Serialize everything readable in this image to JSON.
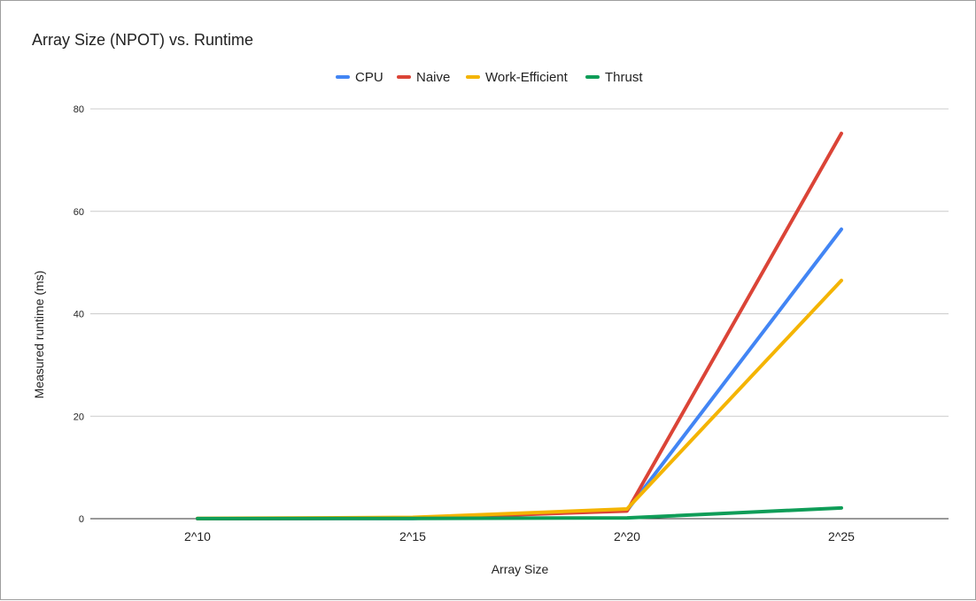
{
  "chart_data": {
    "type": "line",
    "title": "Array Size (NPOT) vs. Runtime",
    "xlabel": "Array Size",
    "ylabel": "Measured runtime (ms)",
    "categories": [
      "2^10",
      "2^15",
      "2^20",
      "2^25"
    ],
    "ylim": [
      0,
      80
    ],
    "yticks": [
      0,
      20,
      40,
      60,
      80
    ],
    "grid": true,
    "legend_position": "top",
    "series": [
      {
        "name": "CPU",
        "color": "#4285f4",
        "values": [
          0.002,
          0.05,
          1.6,
          56.5
        ]
      },
      {
        "name": "Naive",
        "color": "#db4437",
        "values": [
          0.02,
          0.08,
          1.5,
          75.2
        ]
      },
      {
        "name": "Work-Efficient",
        "color": "#f4b400",
        "values": [
          0.05,
          0.25,
          1.9,
          46.5
        ]
      },
      {
        "name": "Thrust",
        "color": "#0f9d58",
        "values": [
          0.02,
          0.05,
          0.15,
          2.1
        ]
      }
    ]
  }
}
